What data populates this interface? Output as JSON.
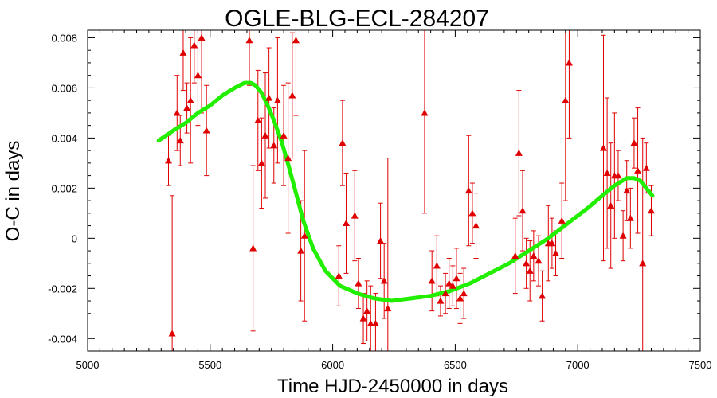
{
  "chart_data": {
    "type": "scatter",
    "title": "OGLE-BLG-ECL-284207",
    "xlabel": "Time HJD-2450000 in days",
    "ylabel": "O-C in days",
    "xlim": [
      5000,
      7500
    ],
    "ylim": [
      -0.0045,
      0.0083
    ],
    "x_ticks": [
      5000,
      5500,
      6000,
      6500,
      7000,
      7500
    ],
    "y_ticks": [
      -0.004,
      -0.002,
      0,
      0.002,
      0.004,
      0.006,
      0.008
    ],
    "x_tick_labels": [
      "5000",
      "5500",
      "6000",
      "6500",
      "7000",
      "7500"
    ],
    "y_tick_labels": [
      "-0.004",
      "-0.002",
      "0",
      "0.002",
      "0.004",
      "0.006",
      "0.008"
    ],
    "grid": false,
    "colors": {
      "points": "#e00000",
      "fit": "#22ee00",
      "axes": "#000000"
    },
    "series": [
      {
        "kind": "points_with_errorbars",
        "points": [
          {
            "x": 5330,
            "y": 0.0031,
            "err": 0.001
          },
          {
            "x": 5345,
            "y": -0.0038,
            "err": 0.0055
          },
          {
            "x": 5365,
            "y": 0.005,
            "err": 0.0015
          },
          {
            "x": 5378,
            "y": 0.0039,
            "err": 0.001
          },
          {
            "x": 5390,
            "y": 0.0074,
            "err": 0.0015
          },
          {
            "x": 5405,
            "y": 0.0052,
            "err": 0.001
          },
          {
            "x": 5420,
            "y": 0.0055,
            "err": 0.0025
          },
          {
            "x": 5435,
            "y": 0.0077,
            "err": 0.0015
          },
          {
            "x": 5450,
            "y": 0.0065,
            "err": 0.002
          },
          {
            "x": 5465,
            "y": 0.008,
            "err": 0.003
          },
          {
            "x": 5485,
            "y": 0.0043,
            "err": 0.0018
          },
          {
            "x": 5660,
            "y": 0.0079,
            "err": 0.0018
          },
          {
            "x": 5675,
            "y": -0.0004,
            "err": 0.0033
          },
          {
            "x": 5695,
            "y": 0.0047,
            "err": 0.002
          },
          {
            "x": 5710,
            "y": 0.003,
            "err": 0.0018
          },
          {
            "x": 5725,
            "y": 0.0041,
            "err": 0.0025
          },
          {
            "x": 5740,
            "y": 0.0056,
            "err": 0.002
          },
          {
            "x": 5760,
            "y": 0.0037,
            "err": 0.0015
          },
          {
            "x": 5775,
            "y": 0.0055,
            "err": 0.0025
          },
          {
            "x": 5800,
            "y": 0.0041,
            "err": 0.002
          },
          {
            "x": 5818,
            "y": 0.0032,
            "err": 0.003
          },
          {
            "x": 5835,
            "y": 0.0057,
            "err": 0.0025
          },
          {
            "x": 5850,
            "y": 0.0079,
            "err": 0.003
          },
          {
            "x": 5870,
            "y": -0.0005,
            "err": 0.002
          },
          {
            "x": 5885,
            "y": 0.0001,
            "err": 0.0034
          },
          {
            "x": 6025,
            "y": -0.0015,
            "err": 0.0012
          },
          {
            "x": 6040,
            "y": 0.0038,
            "err": 0.0017
          },
          {
            "x": 6055,
            "y": 0.0006,
            "err": 0.002
          },
          {
            "x": 6090,
            "y": 0.0009,
            "err": 0.0018
          },
          {
            "x": 6105,
            "y": -0.0018,
            "err": 0.001
          },
          {
            "x": 6125,
            "y": -0.0032,
            "err": 0.001
          },
          {
            "x": 6140,
            "y": -0.0029,
            "err": 0.0012
          },
          {
            "x": 6155,
            "y": -0.0034,
            "err": 0.0015
          },
          {
            "x": 6175,
            "y": -0.0034,
            "err": 0.0012
          },
          {
            "x": 6195,
            "y": -0.0001,
            "err": 0.0015
          },
          {
            "x": 6210,
            "y": -0.0017,
            "err": 0.0015
          },
          {
            "x": 6225,
            "y": -0.0028,
            "err": 0.006
          },
          {
            "x": 6375,
            "y": 0.005,
            "err": 0.004
          },
          {
            "x": 6405,
            "y": -0.0017,
            "err": 0.0012
          },
          {
            "x": 6425,
            "y": -0.0011,
            "err": 0.0012
          },
          {
            "x": 6440,
            "y": -0.0025,
            "err": 0.0006
          },
          {
            "x": 6460,
            "y": -0.0022,
            "err": 0.0008
          },
          {
            "x": 6475,
            "y": -0.0018,
            "err": 0.001
          },
          {
            "x": 6490,
            "y": -0.0019,
            "err": 0.0008
          },
          {
            "x": 6505,
            "y": -0.0016,
            "err": 0.0012
          },
          {
            "x": 6520,
            "y": -0.0024,
            "err": 0.001
          },
          {
            "x": 6535,
            "y": -0.0022,
            "err": 0.001
          },
          {
            "x": 6555,
            "y": 0.0019,
            "err": 0.0022
          },
          {
            "x": 6570,
            "y": 0.001,
            "err": 0.0012
          },
          {
            "x": 6585,
            "y": 0.0005,
            "err": 0.0013
          },
          {
            "x": 6745,
            "y": -0.0007,
            "err": 0.0015
          },
          {
            "x": 6760,
            "y": 0.0034,
            "err": 0.0025
          },
          {
            "x": 6775,
            "y": 0.0011,
            "err": 0.0016
          },
          {
            "x": 6790,
            "y": -0.001,
            "err": 0.001
          },
          {
            "x": 6805,
            "y": -0.0013,
            "err": 0.0012
          },
          {
            "x": 6820,
            "y": -0.0007,
            "err": 0.001
          },
          {
            "x": 6840,
            "y": -0.0009,
            "err": 0.001
          },
          {
            "x": 6855,
            "y": -0.0023,
            "err": 0.001
          },
          {
            "x": 6880,
            "y": -0.0002,
            "err": 0.0015
          },
          {
            "x": 6895,
            "y": -0.0002,
            "err": 0.001
          },
          {
            "x": 6910,
            "y": -0.0006,
            "err": 0.0009
          },
          {
            "x": 6935,
            "y": 0.0007,
            "err": 0.0015
          },
          {
            "x": 6950,
            "y": 0.0055,
            "err": 0.004
          },
          {
            "x": 6965,
            "y": 0.007,
            "err": 0.003
          },
          {
            "x": 7105,
            "y": 0.0036,
            "err": 0.0045
          },
          {
            "x": 7120,
            "y": 0.0026,
            "err": 0.003
          },
          {
            "x": 7135,
            "y": 0.0013,
            "err": 0.0025
          },
          {
            "x": 7150,
            "y": 0.0025,
            "err": 0.0025
          },
          {
            "x": 7165,
            "y": 0.0025,
            "err": 0.001
          },
          {
            "x": 7185,
            "y": 0.0001,
            "err": 0.001
          },
          {
            "x": 7200,
            "y": 0.0019,
            "err": 0.0012
          },
          {
            "x": 7215,
            "y": 0.0008,
            "err": 0.0012
          },
          {
            "x": 7230,
            "y": 0.0038,
            "err": 0.001
          },
          {
            "x": 7245,
            "y": 0.0027,
            "err": 0.0025
          },
          {
            "x": 7265,
            "y": -0.001,
            "err": 0.005
          },
          {
            "x": 7280,
            "y": 0.0028,
            "err": 0.001
          },
          {
            "x": 7300,
            "y": 0.0011,
            "err": 0.001
          }
        ]
      },
      {
        "kind": "fit_curve",
        "x": [
          5290,
          5350,
          5400,
          5450,
          5500,
          5550,
          5600,
          5640,
          5665,
          5685,
          5710,
          5735,
          5760,
          5790,
          5820,
          5850,
          5880,
          5920,
          5970,
          6030,
          6100,
          6170,
          6240,
          6320,
          6400,
          6480,
          6560,
          6640,
          6720,
          6800,
          6880,
          6960,
          7040,
          7100,
          7150,
          7200,
          7230,
          7255,
          7280,
          7305
        ],
        "y": [
          0.0039,
          0.0043,
          0.0046,
          0.005,
          0.0053,
          0.0057,
          0.006,
          0.0062,
          0.0062,
          0.0061,
          0.0058,
          0.0053,
          0.0047,
          0.0039,
          0.0029,
          0.0018,
          0.0007,
          -0.0004,
          -0.0013,
          -0.0019,
          -0.0022,
          -0.0024,
          -0.0025,
          -0.0024,
          -0.0023,
          -0.0021,
          -0.0018,
          -0.0014,
          -0.001,
          -0.0005,
          0.0,
          0.0006,
          0.0012,
          0.0017,
          0.0021,
          0.0024,
          0.0024,
          0.0023,
          0.002,
          0.0017
        ]
      }
    ]
  }
}
